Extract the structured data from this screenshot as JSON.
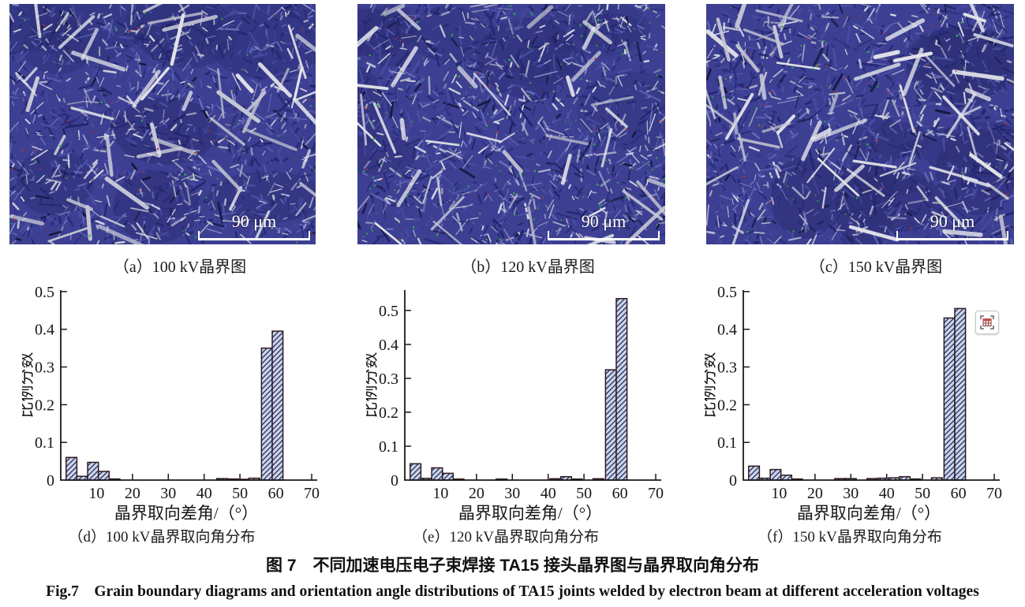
{
  "figure": {
    "caption_zh": "图 7　不同加速电压电子束焊接 TA15 接头晶界图与晶界取向角分布",
    "caption_en": "Fig.7　Grain boundary diagrams and orientation angle distributions of TA15 joints welded by electron beam at different acceleration voltages"
  },
  "micrographs": [
    {
      "id": "a",
      "label": "（a）100 kV晶界图",
      "scale_bar": "90 μm"
    },
    {
      "id": "b",
      "label": "（b）120 kV晶界图",
      "scale_bar": "90 μm"
    },
    {
      "id": "c",
      "label": "（c）150 kV晶界图",
      "scale_bar": "90 μm"
    }
  ],
  "overlay_button": {
    "icon": "table-scan-icon"
  },
  "colors": {
    "bar_fill": "#c9d3ec",
    "bar_edge": "#2e191e",
    "hatch": "#252d55",
    "axis": "#1a1a1a",
    "micro_base": "#3c3f92"
  },
  "chart_data": [
    {
      "type": "bar",
      "title": "（d）100 kV晶界取向角分布",
      "xlabel": "晶界取向差角/（°）",
      "ylabel": "比例分数",
      "xticks": [
        10,
        20,
        30,
        40,
        50,
        60,
        70
      ],
      "yticks": [
        0,
        0.1,
        0.2,
        0.3,
        0.4,
        0.5
      ],
      "xlim": [
        0,
        72
      ],
      "ylim": [
        0,
        0.504
      ],
      "bar_width_deg": 3,
      "points": [
        [
          3,
          0.06
        ],
        [
          6,
          0.01
        ],
        [
          9,
          0.047
        ],
        [
          12,
          0.023
        ],
        [
          15,
          0.003
        ],
        [
          45,
          0.004
        ],
        [
          48,
          0.003
        ],
        [
          51,
          0.002
        ],
        [
          54,
          0.005
        ],
        [
          57.5,
          0.35
        ],
        [
          60.5,
          0.395
        ]
      ]
    },
    {
      "type": "bar",
      "title": "（e）120 kV晶界取向角分布",
      "xlabel": "晶界取向差角/（°）",
      "ylabel": "比例分数",
      "xticks": [
        10,
        20,
        30,
        40,
        50,
        60,
        70
      ],
      "yticks": [
        0,
        0.1,
        0.2,
        0.3,
        0.4,
        0.5
      ],
      "xlim": [
        0,
        72
      ],
      "ylim": [
        0,
        0.56
      ],
      "bar_width_deg": 3,
      "points": [
        [
          3,
          0.048
        ],
        [
          6,
          0.005
        ],
        [
          9,
          0.036
        ],
        [
          12,
          0.02
        ],
        [
          15,
          0.003
        ],
        [
          27,
          0.003
        ],
        [
          42,
          0.004
        ],
        [
          45,
          0.01
        ],
        [
          48,
          0.003
        ],
        [
          54,
          0.004
        ],
        [
          57.5,
          0.325
        ],
        [
          60.5,
          0.535
        ]
      ]
    },
    {
      "type": "bar",
      "title": "（f）150 kV晶界取向角分布",
      "xlabel": "晶界取向差角/（°）",
      "ylabel": "比例分数",
      "xticks": [
        10,
        20,
        30,
        40,
        50,
        60,
        70
      ],
      "yticks": [
        0,
        0.1,
        0.2,
        0.3,
        0.4,
        0.5
      ],
      "xlim": [
        0,
        72
      ],
      "ylim": [
        0,
        0.504
      ],
      "bar_width_deg": 3,
      "points": [
        [
          3,
          0.037
        ],
        [
          6,
          0.005
        ],
        [
          9,
          0.028
        ],
        [
          12,
          0.013
        ],
        [
          15,
          0.003
        ],
        [
          27,
          0.004
        ],
        [
          30,
          0.004
        ],
        [
          36,
          0.004
        ],
        [
          39,
          0.005
        ],
        [
          42,
          0.006
        ],
        [
          45,
          0.009
        ],
        [
          48,
          0.003
        ],
        [
          54,
          0.006
        ],
        [
          57.5,
          0.43
        ],
        [
          60.5,
          0.455
        ]
      ]
    }
  ]
}
